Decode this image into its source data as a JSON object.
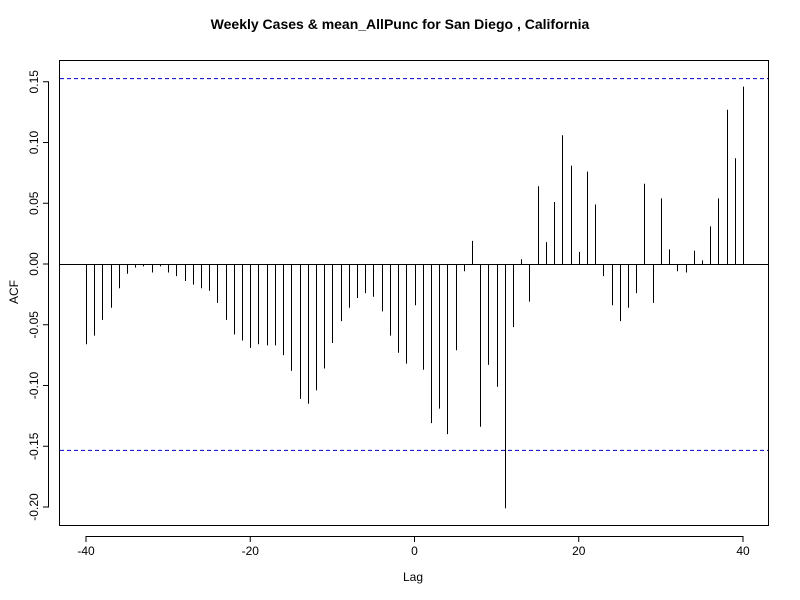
{
  "chart_data": {
    "type": "bar",
    "title": "Weekly Cases & mean_AllPunc for San Diego , California",
    "xlabel": "Lag",
    "ylabel": "ACF",
    "xlim": [
      -40,
      40
    ],
    "ylim": [
      -0.2,
      0.15
    ],
    "xticks": [
      "-40",
      "-20",
      "0",
      "20",
      "40"
    ],
    "yticks": [
      "-0.20",
      "-0.15",
      "-0.10",
      "-0.05",
      "0.00",
      "0.05",
      "0.10",
      "0.15"
    ],
    "confidence_band": 0.153,
    "confidence_color": "#0000cc",
    "bar_color": "#000000",
    "x": [
      -40,
      -39,
      -38,
      -37,
      -36,
      -35,
      -34,
      -33,
      -32,
      -31,
      -30,
      -29,
      -28,
      -27,
      -26,
      -25,
      -24,
      -23,
      -22,
      -21,
      -20,
      -19,
      -18,
      -17,
      -16,
      -15,
      -14,
      -13,
      -12,
      -11,
      -10,
      -9,
      -8,
      -7,
      -6,
      -5,
      -4,
      -3,
      -2,
      -1,
      0,
      1,
      2,
      3,
      4,
      5,
      6,
      7,
      8,
      9,
      10,
      11,
      12,
      13,
      14,
      15,
      16,
      17,
      18,
      19,
      20,
      21,
      22,
      23,
      24,
      25,
      26,
      27,
      28,
      29,
      30,
      31,
      32,
      33,
      34,
      35,
      36,
      37,
      38,
      39,
      40
    ],
    "values": [
      -0.066,
      -0.059,
      -0.046,
      -0.036,
      -0.02,
      -0.008,
      -0.003,
      -0.002,
      -0.007,
      -0.002,
      -0.007,
      -0.01,
      -0.014,
      -0.017,
      -0.02,
      -0.022,
      -0.032,
      -0.046,
      -0.058,
      -0.063,
      -0.069,
      -0.066,
      -0.067,
      -0.067,
      -0.075,
      -0.088,
      -0.111,
      -0.115,
      -0.104,
      -0.086,
      -0.065,
      -0.047,
      -0.036,
      -0.028,
      -0.024,
      -0.027,
      -0.039,
      -0.059,
      -0.073,
      -0.082,
      -0.034,
      -0.087,
      -0.131,
      -0.119,
      -0.14,
      -0.071,
      -0.006,
      0.019,
      -0.134,
      -0.083,
      -0.101,
      -0.201,
      -0.052,
      0.004,
      -0.031,
      0.064,
      0.018,
      0.051,
      0.106,
      0.081,
      0.01,
      0.076,
      0.049,
      -0.01,
      -0.034,
      -0.047,
      -0.036,
      -0.024,
      0.066,
      -0.032,
      0.054,
      0.012,
      -0.006,
      -0.007,
      0.011,
      0.003,
      0.031,
      0.054,
      0.127,
      0.087,
      0.146
    ]
  }
}
